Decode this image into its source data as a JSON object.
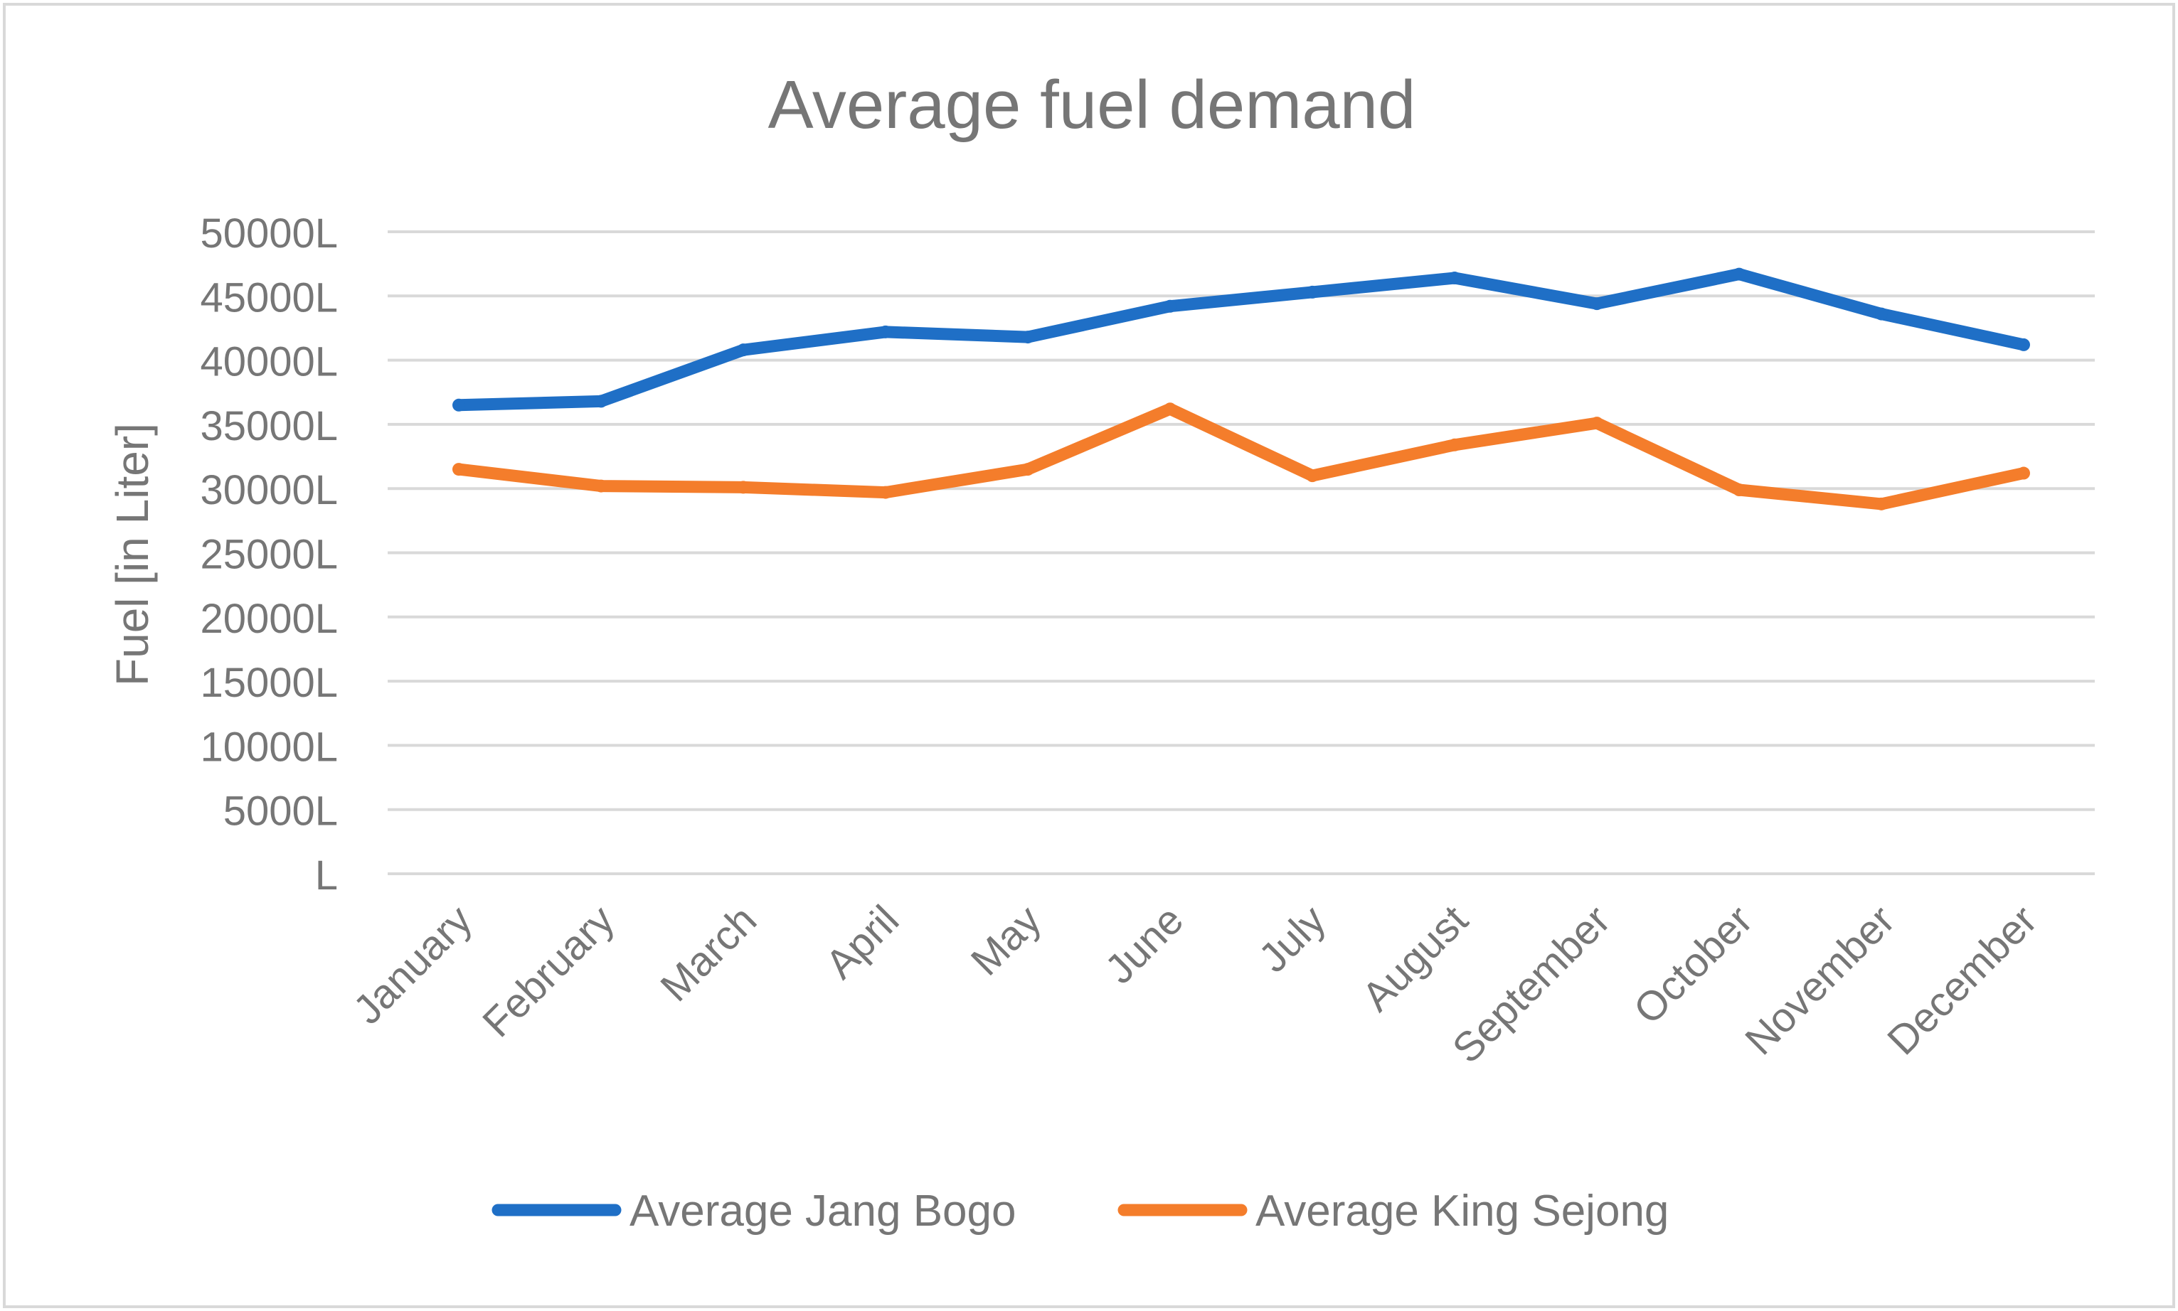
{
  "chart_data": {
    "type": "line",
    "title": "Average fuel demand",
    "xlabel": "",
    "ylabel": "Fuel [in Liter]",
    "ylim": [
      0,
      50000
    ],
    "y_ticks": [
      {
        "value": 0,
        "label": "L"
      },
      {
        "value": 5000,
        "label": "5000L"
      },
      {
        "value": 10000,
        "label": "10000L"
      },
      {
        "value": 15000,
        "label": "15000L"
      },
      {
        "value": 20000,
        "label": "20000L"
      },
      {
        "value": 25000,
        "label": "25000L"
      },
      {
        "value": 30000,
        "label": "30000L"
      },
      {
        "value": 35000,
        "label": "35000L"
      },
      {
        "value": 40000,
        "label": "40000L"
      },
      {
        "value": 45000,
        "label": "45000L"
      },
      {
        "value": 50000,
        "label": "50000L"
      }
    ],
    "grid": true,
    "legend_position": "bottom",
    "categories": [
      "January",
      "February",
      "March",
      "April",
      "May",
      "June",
      "July",
      "August",
      "September",
      "October",
      "November",
      "December"
    ],
    "series": [
      {
        "name": "Average Jang Bogo",
        "color": "#1f6fc6",
        "values": [
          36500,
          36800,
          40800,
          42200,
          41800,
          44200,
          45300,
          46400,
          44400,
          46700,
          43600,
          41200
        ]
      },
      {
        "name": "Average King Sejong",
        "color": "#f47d2b",
        "values": [
          31500,
          30200,
          30100,
          29700,
          31500,
          36200,
          31000,
          33400,
          35100,
          29900,
          28800,
          31200
        ]
      }
    ]
  },
  "colors": {
    "border": "#d9d9d9",
    "gridline": "#d9d9d9",
    "text": "#767676"
  }
}
